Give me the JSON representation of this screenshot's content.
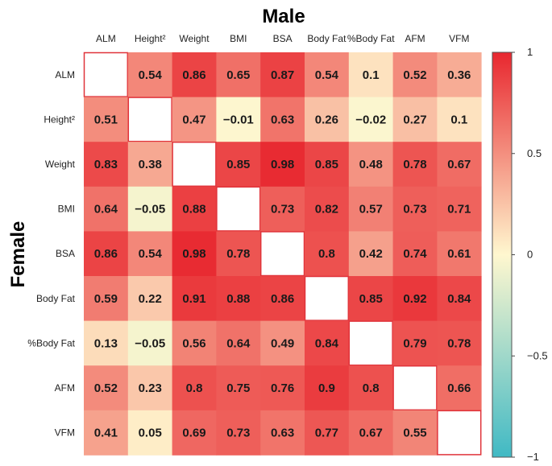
{
  "chart_data": {
    "type": "heatmap",
    "title_top": "Male",
    "title_left": "Female",
    "x_labels": [
      "ALM",
      "Height²",
      "Weight",
      "BMI",
      "BSA",
      "Body Fat",
      "%Body Fat",
      "AFM",
      "VFM"
    ],
    "y_labels": [
      "ALM",
      "Height²",
      "Weight",
      "BMI",
      "BSA",
      "Body Fat",
      "%Body Fat",
      "AFM",
      "VFM"
    ],
    "values": [
      [
        null,
        0.54,
        0.86,
        0.65,
        0.87,
        0.54,
        0.1,
        0.52,
        0.36
      ],
      [
        0.51,
        null,
        0.47,
        -0.01,
        0.63,
        0.26,
        -0.02,
        0.27,
        0.1
      ],
      [
        0.83,
        0.38,
        null,
        0.85,
        0.98,
        0.85,
        0.48,
        0.78,
        0.67
      ],
      [
        0.64,
        -0.05,
        0.88,
        null,
        0.73,
        0.82,
        0.57,
        0.73,
        0.71
      ],
      [
        0.86,
        0.54,
        0.98,
        0.78,
        null,
        0.8,
        0.42,
        0.74,
        0.61
      ],
      [
        0.59,
        0.22,
        0.91,
        0.88,
        0.86,
        null,
        0.85,
        0.92,
        0.84
      ],
      [
        0.13,
        -0.05,
        0.56,
        0.64,
        0.49,
        0.84,
        null,
        0.79,
        0.78
      ],
      [
        0.52,
        0.23,
        0.8,
        0.75,
        0.76,
        0.9,
        0.8,
        null,
        0.66
      ],
      [
        0.41,
        0.05,
        0.69,
        0.73,
        0.63,
        0.77,
        0.67,
        0.55,
        null
      ]
    ],
    "colorbar": {
      "range": [
        -1,
        1
      ],
      "ticks": [
        1,
        0.5,
        0,
        -0.5,
        -1
      ],
      "tick_labels": [
        "1",
        "0.5",
        "0",
        "−0.5",
        "−1"
      ],
      "color_low": "#40b9c4",
      "color_mid": "#fff7cf",
      "color_high": "#e8272f"
    },
    "diagonal_border_color": "#e0333a"
  }
}
